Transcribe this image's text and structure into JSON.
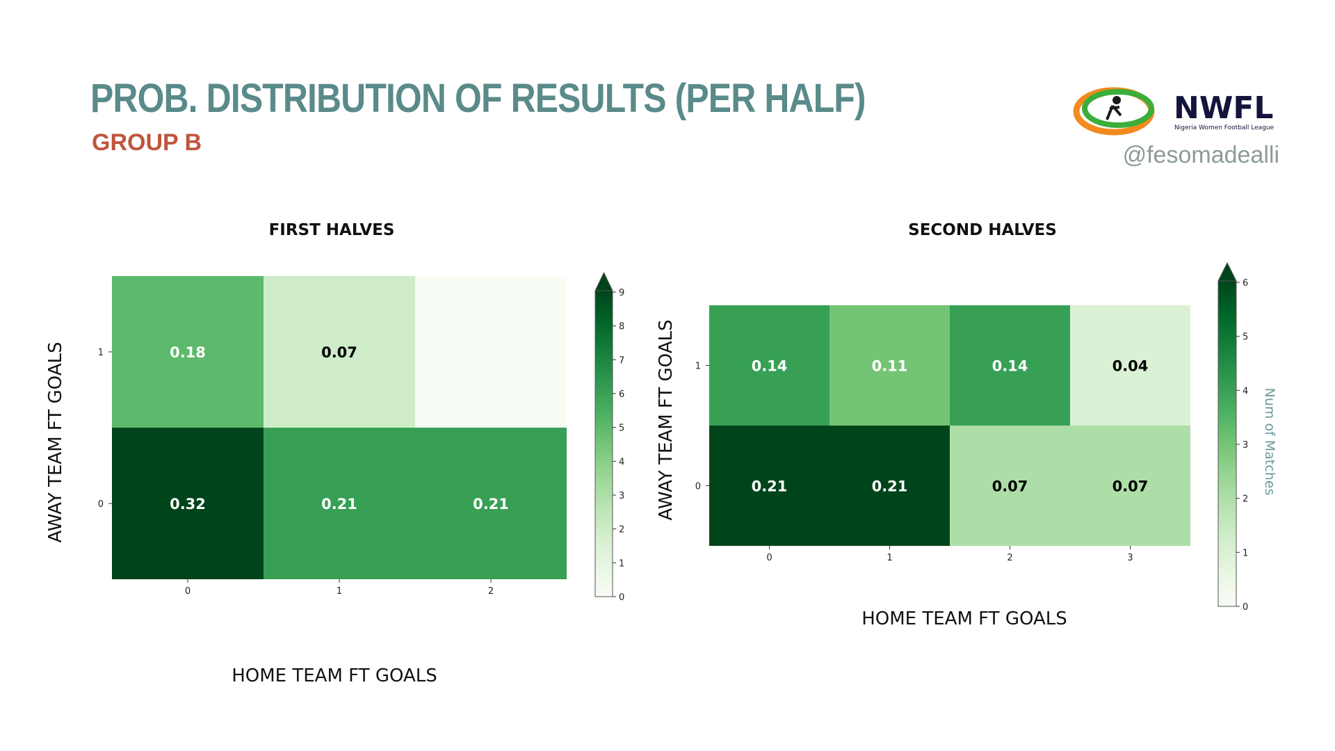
{
  "header": {
    "title": "PROB. DISTRIBUTION OF RESULTS (PER HALF)",
    "subtitle": "GROUP B",
    "logo_text": "NWFL",
    "logo_tagline": "Nigeria Women Football League",
    "handle": "@fesomadealli"
  },
  "chart_data": [
    {
      "type": "heatmap",
      "title": "FIRST HALVES",
      "xlabel": "HOME TEAM FT GOALS",
      "ylabel": "AWAY TEAM FT GOALS",
      "x_categories": [
        "0",
        "1",
        "2"
      ],
      "y_categories": [
        "1",
        "0"
      ],
      "cells": [
        [
          {
            "prob": "0.18",
            "count": 5
          },
          {
            "prob": "0.07",
            "count": 2
          },
          {
            "prob": "",
            "count": 0
          }
        ],
        [
          {
            "prob": "0.32",
            "count": 9
          },
          {
            "prob": "0.21",
            "count": 6
          },
          {
            "prob": "0.21",
            "count": 6
          }
        ]
      ],
      "colorbar": {
        "min": 0,
        "max": 9,
        "ticks": [
          "0",
          "1",
          "2",
          "3",
          "4",
          "5",
          "6",
          "7",
          "8",
          "9"
        ],
        "label": ""
      },
      "colormap": "Greens"
    },
    {
      "type": "heatmap",
      "title": "SECOND HALVES",
      "xlabel": "HOME TEAM FT GOALS",
      "ylabel": "AWAY TEAM FT GOALS",
      "x_categories": [
        "0",
        "1",
        "2",
        "3"
      ],
      "y_categories": [
        "1",
        "0"
      ],
      "cells": [
        [
          {
            "prob": "0.14",
            "count": 4
          },
          {
            "prob": "0.11",
            "count": 3
          },
          {
            "prob": "0.14",
            "count": 4
          },
          {
            "prob": "0.04",
            "count": 1
          }
        ],
        [
          {
            "prob": "0.21",
            "count": 6
          },
          {
            "prob": "0.21",
            "count": 6
          },
          {
            "prob": "0.07",
            "count": 2
          },
          {
            "prob": "0.07",
            "count": 2
          }
        ]
      ],
      "colorbar": {
        "min": 0,
        "max": 6,
        "ticks": [
          "0",
          "1",
          "2",
          "3",
          "4",
          "5",
          "6"
        ],
        "label": "Num of Matches"
      },
      "colormap": "Greens"
    }
  ]
}
